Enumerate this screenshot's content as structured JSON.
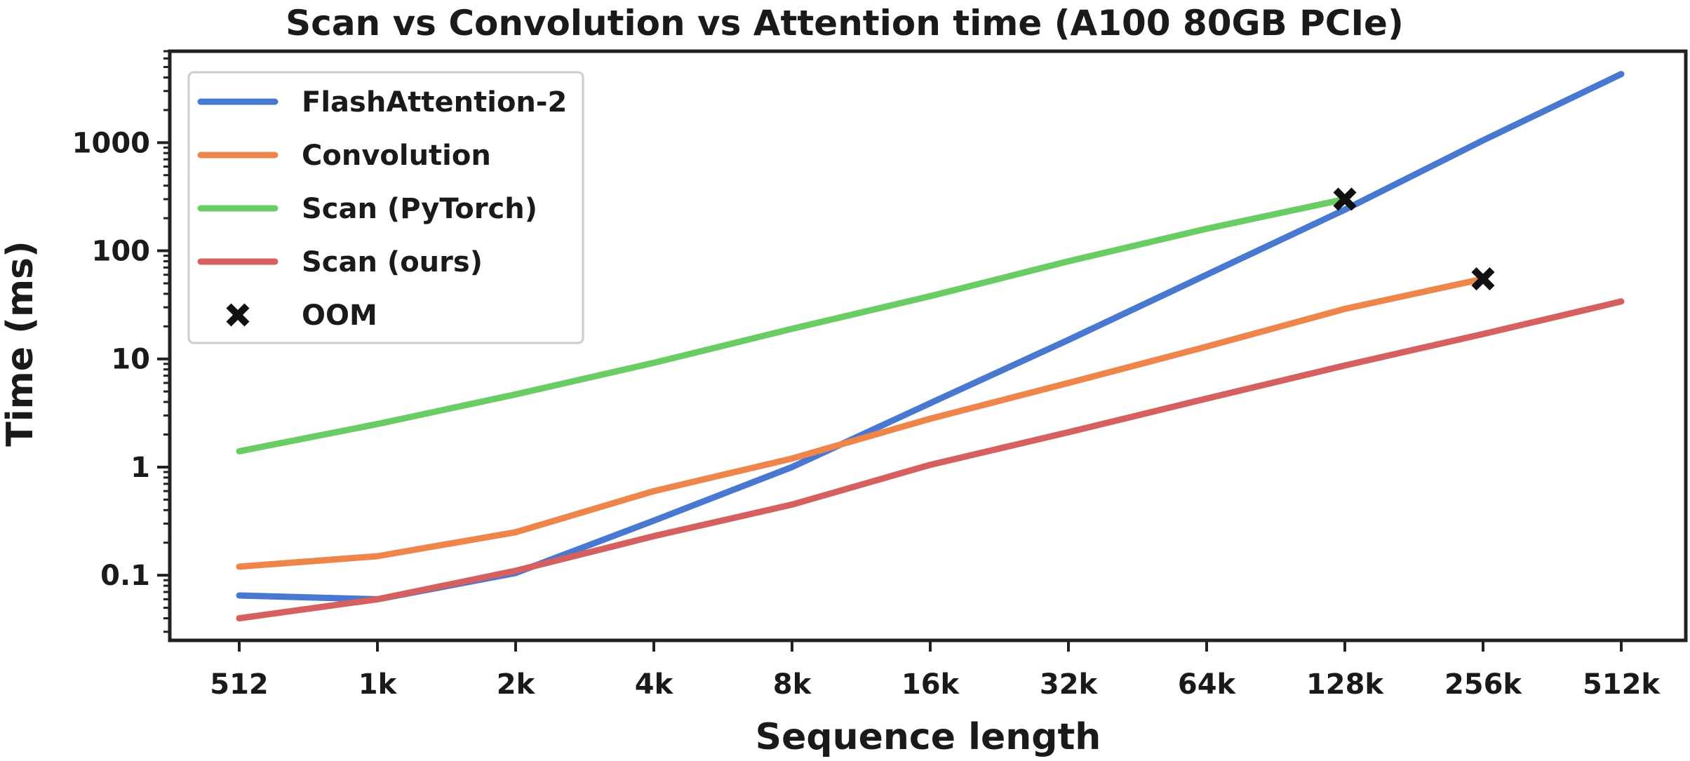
{
  "chart_data": {
    "type": "line",
    "title": "Scan vs Convolution vs Attention time (A100 80GB PCIe)",
    "xlabel": "Sequence length",
    "ylabel": "Time (ms)",
    "yscale": "log",
    "ylim": [
      0.025,
      7000
    ],
    "categories": [
      "512",
      "1k",
      "2k",
      "4k",
      "8k",
      "16k",
      "32k",
      "64k",
      "128k",
      "256k",
      "512k"
    ],
    "yticks": [
      0.1,
      1,
      10,
      100,
      1000
    ],
    "ytick_labels": [
      "0.1",
      "1",
      "10",
      "100",
      "1000"
    ],
    "series": [
      {
        "name": "FlashAttention-2",
        "color": "#4878d0",
        "values": [
          0.065,
          0.06,
          0.105,
          0.32,
          1.0,
          3.9,
          15,
          60,
          240,
          1050,
          4300
        ]
      },
      {
        "name": "Convolution",
        "color": "#ee854a",
        "values": [
          0.12,
          0.15,
          0.25,
          0.6,
          1.2,
          2.8,
          6.0,
          13,
          29,
          55,
          null
        ]
      },
      {
        "name": "Scan (PyTorch)",
        "color": "#6acc64",
        "values": [
          1.4,
          2.5,
          4.7,
          9.2,
          19,
          38,
          80,
          160,
          300,
          null,
          null
        ]
      },
      {
        "name": "Scan (ours)",
        "color": "#d65f5f",
        "values": [
          0.04,
          0.06,
          0.11,
          0.23,
          0.45,
          1.05,
          2.1,
          4.3,
          8.7,
          17,
          34
        ]
      }
    ],
    "oom_markers": [
      {
        "series": "Scan (PyTorch)",
        "x": "128k",
        "y": 300
      },
      {
        "series": "Convolution",
        "x": "256k",
        "y": 55
      }
    ],
    "legend": [
      {
        "label": "FlashAttention-2",
        "kind": "line",
        "color": "#4878d0"
      },
      {
        "label": "Convolution",
        "kind": "line",
        "color": "#ee854a"
      },
      {
        "label": "Scan (PyTorch)",
        "kind": "line",
        "color": "#6acc64"
      },
      {
        "label": "Scan (ours)",
        "kind": "line",
        "color": "#d65f5f"
      },
      {
        "label": "OOM",
        "kind": "marker",
        "color": "#111111"
      }
    ],
    "legend_position": "top-left",
    "grid": false
  }
}
